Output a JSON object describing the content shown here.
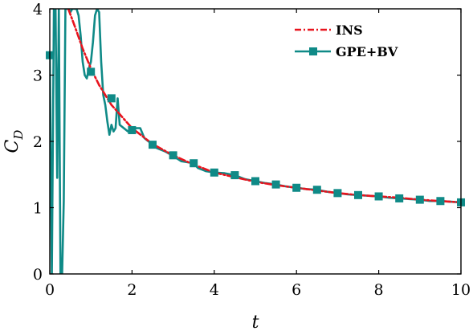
{
  "chart_data": {
    "type": "line",
    "xlabel": "t",
    "ylabel_main": "C",
    "ylabel_sub": "D",
    "xlim": [
      0,
      10
    ],
    "ylim": [
      0,
      4
    ],
    "xticks": [
      0,
      2,
      4,
      6,
      8,
      10
    ],
    "yticks": [
      0,
      1,
      2,
      3,
      4
    ],
    "grid": false,
    "legend_position": "top-right",
    "series": [
      {
        "name": "INS",
        "color": "#e8141e",
        "style": "dash-dot",
        "x": [
          0.45,
          0.6,
          0.8,
          1.0,
          1.2,
          1.5,
          2.0,
          2.5,
          3.0,
          3.5,
          4.0,
          4.5,
          5.0,
          5.5,
          6.0,
          6.5,
          7.0,
          7.5,
          8.0,
          8.5,
          9.0,
          9.5,
          10.0
        ],
        "y": [
          4.0,
          3.75,
          3.4,
          3.1,
          2.85,
          2.55,
          2.2,
          1.96,
          1.79,
          1.65,
          1.53,
          1.46,
          1.39,
          1.34,
          1.3,
          1.26,
          1.22,
          1.19,
          1.17,
          1.15,
          1.12,
          1.1,
          1.08
        ]
      },
      {
        "name": "GPE+BV",
        "color": "#0f8a87",
        "style": "solid-square-markers",
        "x": [
          0.0,
          0.05,
          0.1,
          0.14,
          0.18,
          0.22,
          0.26,
          0.3,
          0.34,
          0.38,
          0.42,
          0.46,
          0.5,
          0.55,
          0.6,
          0.65,
          0.7,
          0.75,
          0.8,
          0.85,
          0.9,
          0.95,
          1.0,
          1.05,
          1.1,
          1.15,
          1.2,
          1.25,
          1.3,
          1.35,
          1.4,
          1.45,
          1.5,
          1.55,
          1.6,
          1.65,
          1.7,
          1.8,
          1.9,
          2.0,
          2.1,
          2.2,
          2.3,
          2.4,
          2.5,
          2.6,
          2.8,
          3.0,
          3.2,
          3.4,
          3.5,
          3.6,
          3.8,
          4.0,
          4.25,
          4.5,
          4.75,
          5.0,
          5.25,
          5.5,
          5.75,
          6.0,
          6.25,
          6.5,
          6.75,
          7.0,
          7.25,
          7.5,
          7.75,
          8.0,
          8.25,
          8.5,
          8.75,
          9.0,
          9.25,
          9.5,
          9.75,
          10.0
        ],
        "y": [
          3.3,
          0.0,
          4.0,
          4.0,
          1.45,
          4.0,
          0.0,
          0.0,
          1.1,
          4.0,
          4.0,
          4.0,
          3.95,
          4.0,
          4.0,
          4.0,
          3.9,
          3.6,
          3.2,
          3.0,
          2.95,
          3.1,
          3.2,
          3.5,
          3.9,
          4.0,
          3.95,
          3.2,
          2.7,
          2.55,
          2.3,
          2.1,
          2.25,
          2.15,
          2.2,
          2.65,
          2.25,
          2.2,
          2.15,
          2.15,
          2.2,
          2.2,
          2.05,
          2.0,
          1.95,
          1.9,
          1.85,
          1.78,
          1.7,
          1.68,
          1.67,
          1.6,
          1.55,
          1.53,
          1.52,
          1.49,
          1.43,
          1.4,
          1.37,
          1.35,
          1.32,
          1.3,
          1.28,
          1.27,
          1.24,
          1.22,
          1.2,
          1.19,
          1.18,
          1.17,
          1.15,
          1.14,
          1.13,
          1.12,
          1.1,
          1.1,
          1.09,
          1.08
        ],
        "markers_x": [
          0.0,
          1.0,
          1.5,
          2.0,
          2.5,
          3.0,
          3.5,
          4.0,
          4.5,
          5.0,
          5.5,
          6.0,
          6.5,
          7.0,
          7.5,
          8.0,
          8.5,
          9.0,
          9.5,
          10.0
        ],
        "markers_y": [
          3.3,
          3.05,
          2.65,
          2.17,
          1.95,
          1.79,
          1.67,
          1.53,
          1.49,
          1.4,
          1.35,
          1.3,
          1.27,
          1.22,
          1.19,
          1.17,
          1.14,
          1.12,
          1.1,
          1.08
        ]
      }
    ]
  }
}
